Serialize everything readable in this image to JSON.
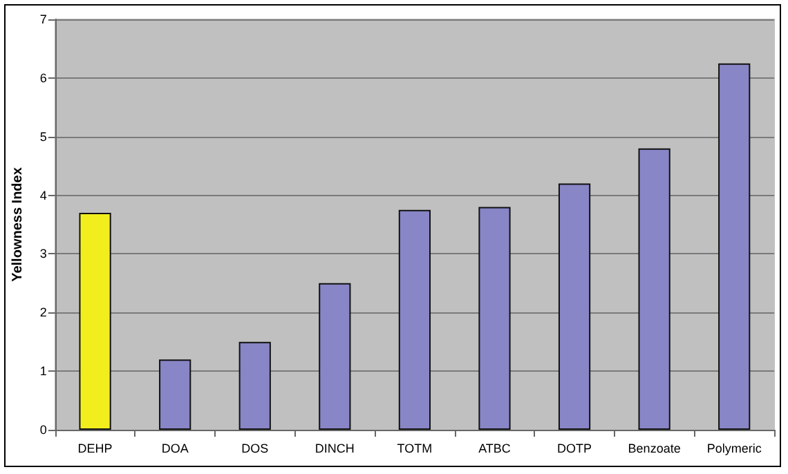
{
  "chart_data": {
    "type": "bar",
    "ylabel": "Yellowness Index",
    "categories": [
      "DEHP",
      "DOA",
      "DOS",
      "DINCH",
      "TOTM",
      "ATBC",
      "DOTP",
      "Benzoate",
      "Polymeric"
    ],
    "values": [
      3.7,
      1.2,
      1.5,
      2.5,
      3.75,
      3.8,
      4.2,
      4.8,
      6.25
    ],
    "colors": [
      "#f2ee1e",
      "#8886c6",
      "#8886c6",
      "#8886c6",
      "#8886c6",
      "#8886c6",
      "#8886c6",
      "#8886c6",
      "#8886c6"
    ],
    "ylim": [
      0,
      7
    ],
    "yticks": [
      0,
      1,
      2,
      3,
      4,
      5,
      6,
      7
    ],
    "grid": "y"
  }
}
